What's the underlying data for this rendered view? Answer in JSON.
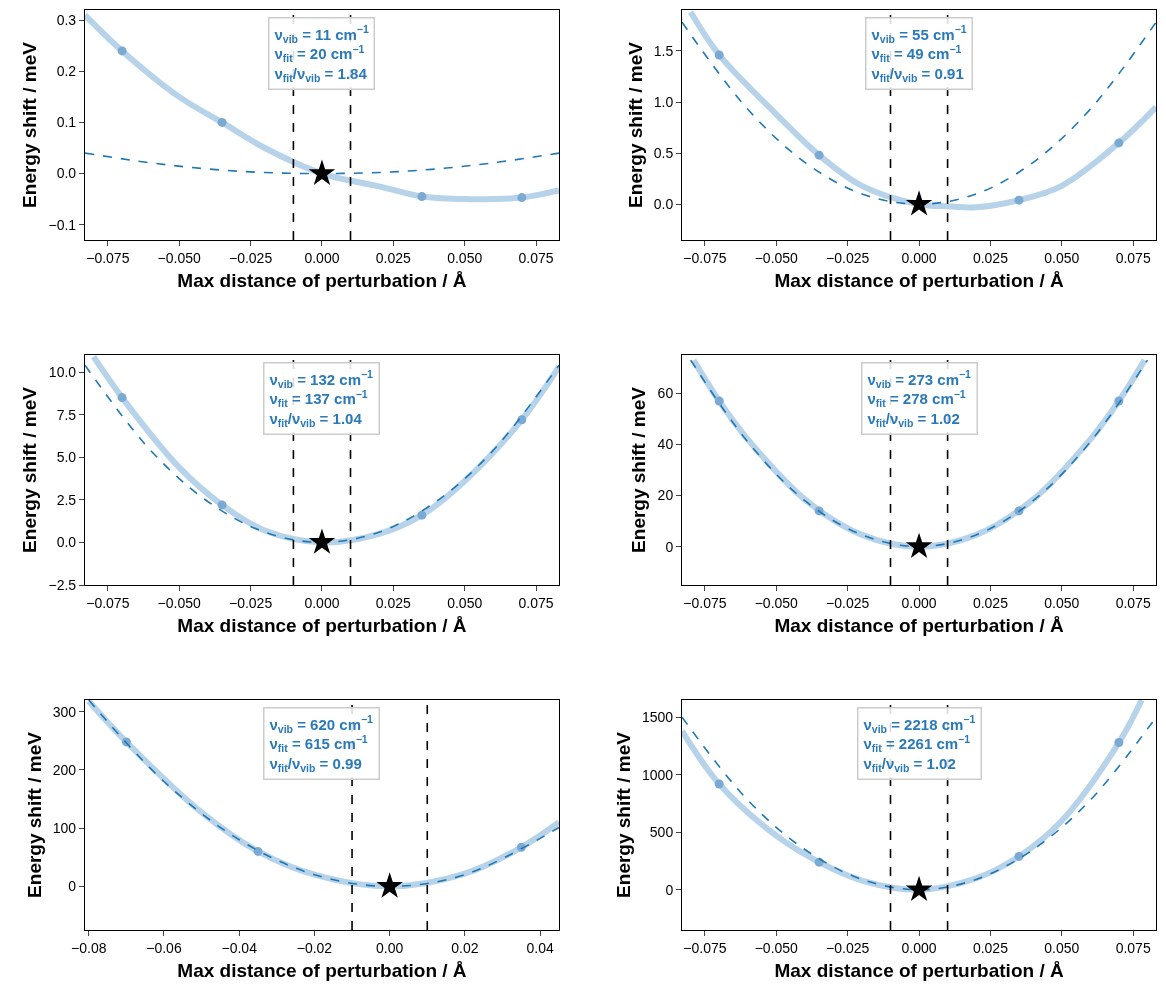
{
  "chart_data": [
    {
      "type": "line",
      "xlabel": "Max distance of perturbation / Å",
      "ylabel": "Energy shift / meV",
      "xlim": [
        -0.083,
        0.083
      ],
      "xticks": [
        {
          "value": -0.075,
          "label": "−0.075"
        },
        {
          "value": -0.05,
          "label": "−0.050"
        },
        {
          "value": -0.025,
          "label": "−0.025"
        },
        {
          "value": 0,
          "label": "0.000"
        },
        {
          "value": 0.025,
          "label": "0.025"
        },
        {
          "value": 0.05,
          "label": "0.050"
        },
        {
          "value": 0.075,
          "label": "0.075"
        }
      ],
      "ylim": [
        -0.13,
        0.32
      ],
      "yticks": [
        {
          "value": -0.1,
          "label": "−0.1"
        },
        {
          "value": 0,
          "label": "0.0"
        },
        {
          "value": 0.1,
          "label": "0.1"
        },
        {
          "value": 0.2,
          "label": "0.2"
        },
        {
          "value": 0.3,
          "label": "0.3"
        }
      ],
      "series": [
        {
          "type": "line",
          "line_style": "solid",
          "color": "#b7d3e9",
          "x": [
            -0.083,
            -0.07,
            -0.05,
            -0.035,
            -0.02,
            0,
            0.02,
            0.035,
            0.05,
            0.06,
            0.07,
            0.083
          ],
          "values": [
            0.31,
            0.24,
            0.15,
            0.1,
            0.05,
            0,
            -0.025,
            -0.045,
            -0.05,
            -0.05,
            -0.047,
            -0.033
          ]
        },
        {
          "type": "scatter",
          "marker": "circle",
          "color": "#7aaad3",
          "x": [
            -0.07,
            -0.035,
            0.035,
            0.07
          ],
          "values": [
            0.24,
            0.1,
            -0.045,
            -0.047
          ]
        },
        {
          "type": "line",
          "line_style": "dashed",
          "color": "#1f77b4",
          "x": [
            -0.083,
            -0.06,
            -0.04,
            -0.02,
            0,
            0.02,
            0.04,
            0.06,
            0.083
          ],
          "values": [
            0.04,
            0.021,
            0.009,
            0.002,
            0,
            0.002,
            0.009,
            0.021,
            0.04
          ]
        },
        {
          "type": "scatter",
          "marker": "star",
          "color": "#000000",
          "x": [
            0
          ],
          "values": [
            0
          ]
        }
      ],
      "ref_lines": [
        {
          "axis": "x",
          "value": -0.01,
          "color": "#000000",
          "line_style": "dashed"
        },
        {
          "axis": "x",
          "value": 0.01,
          "color": "#000000",
          "line_style": "dashed"
        }
      ],
      "annotations": [
        "ν$_{vib}$ = 11 cm$^{−1}$\nν$_{fit}$ = 20 cm$^{−1}$\nν$_{fit}$/ν$_{vib}$ = 1.84"
      ]
    },
    {
      "type": "line",
      "xlabel": "Max distance of perturbation / Å",
      "ylabel": "Energy shift / meV",
      "xlim": [
        -0.083,
        0.083
      ],
      "xticks": [
        {
          "value": -0.075,
          "label": "−0.075"
        },
        {
          "value": -0.05,
          "label": "−0.050"
        },
        {
          "value": -0.025,
          "label": "−0.025"
        },
        {
          "value": 0,
          "label": "0.000"
        },
        {
          "value": 0.025,
          "label": "0.025"
        },
        {
          "value": 0.05,
          "label": "0.050"
        },
        {
          "value": 0.075,
          "label": "0.075"
        }
      ],
      "ylim": [
        -0.35,
        1.9
      ],
      "yticks": [
        {
          "value": 0,
          "label": "0.0"
        },
        {
          "value": 0.5,
          "label": "0.5"
        },
        {
          "value": 1,
          "label": "1.0"
        },
        {
          "value": 1.5,
          "label": "1.5"
        }
      ],
      "series": [
        {
          "type": "line",
          "line_style": "solid",
          "color": "#b7d3e9",
          "x": [
            -0.08,
            -0.07,
            -0.05,
            -0.035,
            -0.02,
            0,
            0.01,
            0.02,
            0.035,
            0.05,
            0.07,
            0.083
          ],
          "values": [
            1.88,
            1.46,
            0.88,
            0.48,
            0.18,
            0,
            -0.02,
            -0.03,
            0.04,
            0.18,
            0.6,
            0.95
          ]
        },
        {
          "type": "scatter",
          "marker": "circle",
          "color": "#7aaad3",
          "x": [
            -0.07,
            -0.035,
            0.035,
            0.07
          ],
          "values": [
            1.46,
            0.48,
            0.04,
            0.6
          ]
        },
        {
          "type": "line",
          "line_style": "dashed",
          "color": "#1f77b4",
          "x": [
            -0.083,
            -0.06,
            -0.04,
            -0.02,
            0,
            0.02,
            0.04,
            0.06,
            0.083
          ],
          "values": [
            1.78,
            0.93,
            0.41,
            0.1,
            0,
            0.1,
            0.41,
            0.93,
            1.78
          ]
        },
        {
          "type": "scatter",
          "marker": "star",
          "color": "#000000",
          "x": [
            0
          ],
          "values": [
            0
          ]
        }
      ],
      "ref_lines": [
        {
          "axis": "x",
          "value": -0.01,
          "color": "#000000",
          "line_style": "dashed"
        },
        {
          "axis": "x",
          "value": 0.01,
          "color": "#000000",
          "line_style": "dashed"
        }
      ],
      "annotations": [
        "ν$_{vib}$ = 55 cm$^{−1}$\nν$_{fit}$ = 49 cm$^{−1}$\nν$_{fit}$/ν$_{vib}$ = 0.91"
      ]
    },
    {
      "type": "line",
      "xlabel": "Max distance of perturbation / Å",
      "ylabel": "Energy shift / meV",
      "xlim": [
        -0.083,
        0.083
      ],
      "xticks": [
        {
          "value": -0.075,
          "label": "−0.075"
        },
        {
          "value": -0.05,
          "label": "−0.050"
        },
        {
          "value": -0.025,
          "label": "−0.025"
        },
        {
          "value": 0,
          "label": "0.000"
        },
        {
          "value": 0.025,
          "label": "0.025"
        },
        {
          "value": 0.05,
          "label": "0.050"
        },
        {
          "value": 0.075,
          "label": "0.075"
        }
      ],
      "ylim": [
        -2.5,
        11
      ],
      "yticks": [
        {
          "value": -2.5,
          "label": "−2.5"
        },
        {
          "value": 0,
          "label": "0.0"
        },
        {
          "value": 2.5,
          "label": "2.5"
        },
        {
          "value": 5,
          "label": "5.0"
        },
        {
          "value": 7.5,
          "label": "7.5"
        },
        {
          "value": 10,
          "label": "10.0"
        }
      ],
      "series": [
        {
          "type": "line",
          "line_style": "solid",
          "color": "#b7d3e9",
          "x": [
            -0.08,
            -0.07,
            -0.05,
            -0.035,
            -0.02,
            0,
            0.02,
            0.035,
            0.05,
            0.07,
            0.083
          ],
          "values": [
            10.9,
            8.5,
            4.4,
            2.2,
            0.7,
            0,
            0.5,
            1.6,
            3.6,
            7.2,
            10.3
          ]
        },
        {
          "type": "scatter",
          "marker": "circle",
          "color": "#7aaad3",
          "x": [
            -0.07,
            -0.035,
            0.035,
            0.07
          ],
          "values": [
            8.5,
            2.2,
            1.6,
            7.2
          ]
        },
        {
          "type": "line",
          "line_style": "dashed",
          "color": "#1f77b4",
          "x": [
            -0.083,
            -0.06,
            -0.04,
            -0.02,
            0,
            0.02,
            0.04,
            0.06,
            0.083
          ],
          "values": [
            10.4,
            5.4,
            2.4,
            0.6,
            0,
            0.6,
            2.4,
            5.4,
            10.4
          ]
        },
        {
          "type": "scatter",
          "marker": "star",
          "color": "#000000",
          "x": [
            0
          ],
          "values": [
            0
          ]
        }
      ],
      "ref_lines": [
        {
          "axis": "x",
          "value": -0.01,
          "color": "#000000",
          "line_style": "dashed"
        },
        {
          "axis": "x",
          "value": 0.01,
          "color": "#000000",
          "line_style": "dashed"
        }
      ],
      "annotations": [
        "ν$_{vib}$ = 132 cm$^{−1}$\nν$_{fit}$ = 137 cm$^{−1}$\nν$_{fit}$/ν$_{vib}$ = 1.04"
      ]
    },
    {
      "type": "line",
      "xlabel": "Max distance of perturbation / Å",
      "ylabel": "Energy shift / meV",
      "xlim": [
        -0.083,
        0.083
      ],
      "xticks": [
        {
          "value": -0.075,
          "label": "−0.075"
        },
        {
          "value": -0.05,
          "label": "−0.050"
        },
        {
          "value": -0.025,
          "label": "−0.025"
        },
        {
          "value": 0,
          "label": "0.000"
        },
        {
          "value": 0.025,
          "label": "0.025"
        },
        {
          "value": 0.05,
          "label": "0.050"
        },
        {
          "value": 0.075,
          "label": "0.075"
        }
      ],
      "ylim": [
        -15,
        75
      ],
      "yticks": [
        0,
        20,
        40,
        60
      ],
      "series": [
        {
          "type": "line",
          "line_style": "solid",
          "color": "#b7d3e9",
          "x": [
            -0.079,
            -0.07,
            -0.06,
            -0.04,
            -0.02,
            0,
            0.02,
            0.04,
            0.06,
            0.07,
            0.079
          ],
          "values": [
            73,
            57,
            42,
            18.5,
            4.6,
            0,
            4.6,
            18.5,
            42,
            57,
            73
          ]
        },
        {
          "type": "scatter",
          "marker": "circle",
          "color": "#7aaad3",
          "x": [
            -0.07,
            -0.035,
            0.035,
            0.07
          ],
          "values": [
            57,
            14,
            14,
            57
          ]
        },
        {
          "type": "line",
          "line_style": "dashed",
          "color": "#1f77b4",
          "x": [
            -0.08,
            -0.06,
            -0.04,
            -0.02,
            0,
            0.02,
            0.04,
            0.06,
            0.08
          ],
          "values": [
            73,
            41,
            18,
            4.6,
            0,
            4.6,
            18,
            41,
            73
          ]
        },
        {
          "type": "scatter",
          "marker": "star",
          "color": "#000000",
          "x": [
            0
          ],
          "values": [
            0
          ]
        }
      ],
      "ref_lines": [
        {
          "axis": "x",
          "value": -0.01,
          "color": "#000000",
          "line_style": "dashed"
        },
        {
          "axis": "x",
          "value": 0.01,
          "color": "#000000",
          "line_style": "dashed"
        }
      ],
      "annotations": [
        "ν$_{vib}$ = 273 cm$^{−1}$\nν$_{fit}$ = 278 cm$^{−1}$\nν$_{fit}$/ν$_{vib}$ = 1.02"
      ]
    },
    {
      "type": "line",
      "xlabel": "Max distance of perturbation / Å",
      "ylabel": "Energy shift / meV",
      "xlim": [
        -0.081,
        0.045
      ],
      "xticks": [
        {
          "value": -0.08,
          "label": "−0.08"
        },
        {
          "value": -0.06,
          "label": "−0.06"
        },
        {
          "value": -0.04,
          "label": "−0.04"
        },
        {
          "value": -0.02,
          "label": "−0.02"
        },
        {
          "value": 0,
          "label": "0.00"
        },
        {
          "value": 0.02,
          "label": "0.02"
        },
        {
          "value": 0.04,
          "label": "0.04"
        }
      ],
      "ylim": [
        -75,
        320
      ],
      "yticks": [
        0,
        100,
        200,
        300
      ],
      "series": [
        {
          "type": "line",
          "line_style": "solid",
          "color": "#b7d3e9",
          "x": [
            -0.08,
            -0.07,
            -0.05,
            -0.035,
            -0.02,
            0,
            0.02,
            0.035,
            0.045
          ],
          "values": [
            318,
            248,
            127,
            60,
            20,
            0,
            22,
            67,
            110
          ]
        },
        {
          "type": "scatter",
          "marker": "circle",
          "color": "#7aaad3",
          "x": [
            -0.07,
            -0.035,
            0.035
          ],
          "values": [
            248,
            60,
            67
          ]
        },
        {
          "type": "line",
          "line_style": "dashed",
          "color": "#1f77b4",
          "x": [
            -0.08,
            -0.06,
            -0.04,
            -0.02,
            0,
            0.02,
            0.045
          ],
          "values": [
            320,
            180,
            80,
            20,
            0,
            20,
            101
          ]
        },
        {
          "type": "scatter",
          "marker": "star",
          "color": "#000000",
          "x": [
            0
          ],
          "values": [
            0
          ]
        }
      ],
      "ref_lines": [
        {
          "axis": "x",
          "value": -0.01,
          "color": "#000000",
          "line_style": "dashed"
        },
        {
          "axis": "x",
          "value": 0.01,
          "color": "#000000",
          "line_style": "dashed"
        }
      ],
      "annotations": [
        "ν$_{vib}$ = 620 cm$^{−1}$\nν$_{fit}$ = 615 cm$^{−1}$\nν$_{fit}$/ν$_{vib}$ = 0.99"
      ]
    },
    {
      "type": "line",
      "xlabel": "Max distance of perturbation / Å",
      "ylabel": "Energy shift / meV",
      "xlim": [
        -0.083,
        0.083
      ],
      "xticks": [
        {
          "value": -0.075,
          "label": "−0.075"
        },
        {
          "value": -0.05,
          "label": "−0.050"
        },
        {
          "value": -0.025,
          "label": "−0.025"
        },
        {
          "value": 0,
          "label": "0.000"
        },
        {
          "value": 0.025,
          "label": "0.025"
        },
        {
          "value": 0.05,
          "label": "0.050"
        },
        {
          "value": 0.075,
          "label": "0.075"
        }
      ],
      "ylim": [
        -350,
        1650
      ],
      "yticks": [
        0,
        500,
        1000,
        1500
      ],
      "series": [
        {
          "type": "line",
          "line_style": "solid",
          "color": "#b7d3e9",
          "x": [
            -0.083,
            -0.07,
            -0.05,
            -0.035,
            -0.02,
            0,
            0.02,
            0.035,
            0.05,
            0.07,
            0.078
          ],
          "values": [
            1380,
            920,
            470,
            240,
            80,
            0,
            100,
            290,
            600,
            1280,
            1650
          ]
        },
        {
          "type": "scatter",
          "marker": "circle",
          "color": "#7aaad3",
          "x": [
            -0.07,
            -0.035,
            0.035,
            0.07
          ],
          "values": [
            920,
            240,
            290,
            1280
          ]
        },
        {
          "type": "line",
          "line_style": "dashed",
          "color": "#1f77b4",
          "x": [
            -0.083,
            -0.06,
            -0.04,
            -0.02,
            0,
            0.02,
            0.04,
            0.06,
            0.083
          ],
          "values": [
            1500,
            780,
            350,
            90,
            0,
            90,
            350,
            780,
            1500
          ]
        },
        {
          "type": "scatter",
          "marker": "star",
          "color": "#000000",
          "x": [
            0
          ],
          "values": [
            0
          ]
        }
      ],
      "ref_lines": [
        {
          "axis": "x",
          "value": -0.01,
          "color": "#000000",
          "line_style": "dashed"
        },
        {
          "axis": "x",
          "value": 0.01,
          "color": "#000000",
          "line_style": "dashed"
        }
      ],
      "annotations": [
        "ν$_{vib}$ = 2218 cm$^{−1}$\nν$_{fit}$ = 2261 cm$^{−1}$\nν$_{fit}$/ν$_{vib}$ = 1.02"
      ]
    }
  ]
}
